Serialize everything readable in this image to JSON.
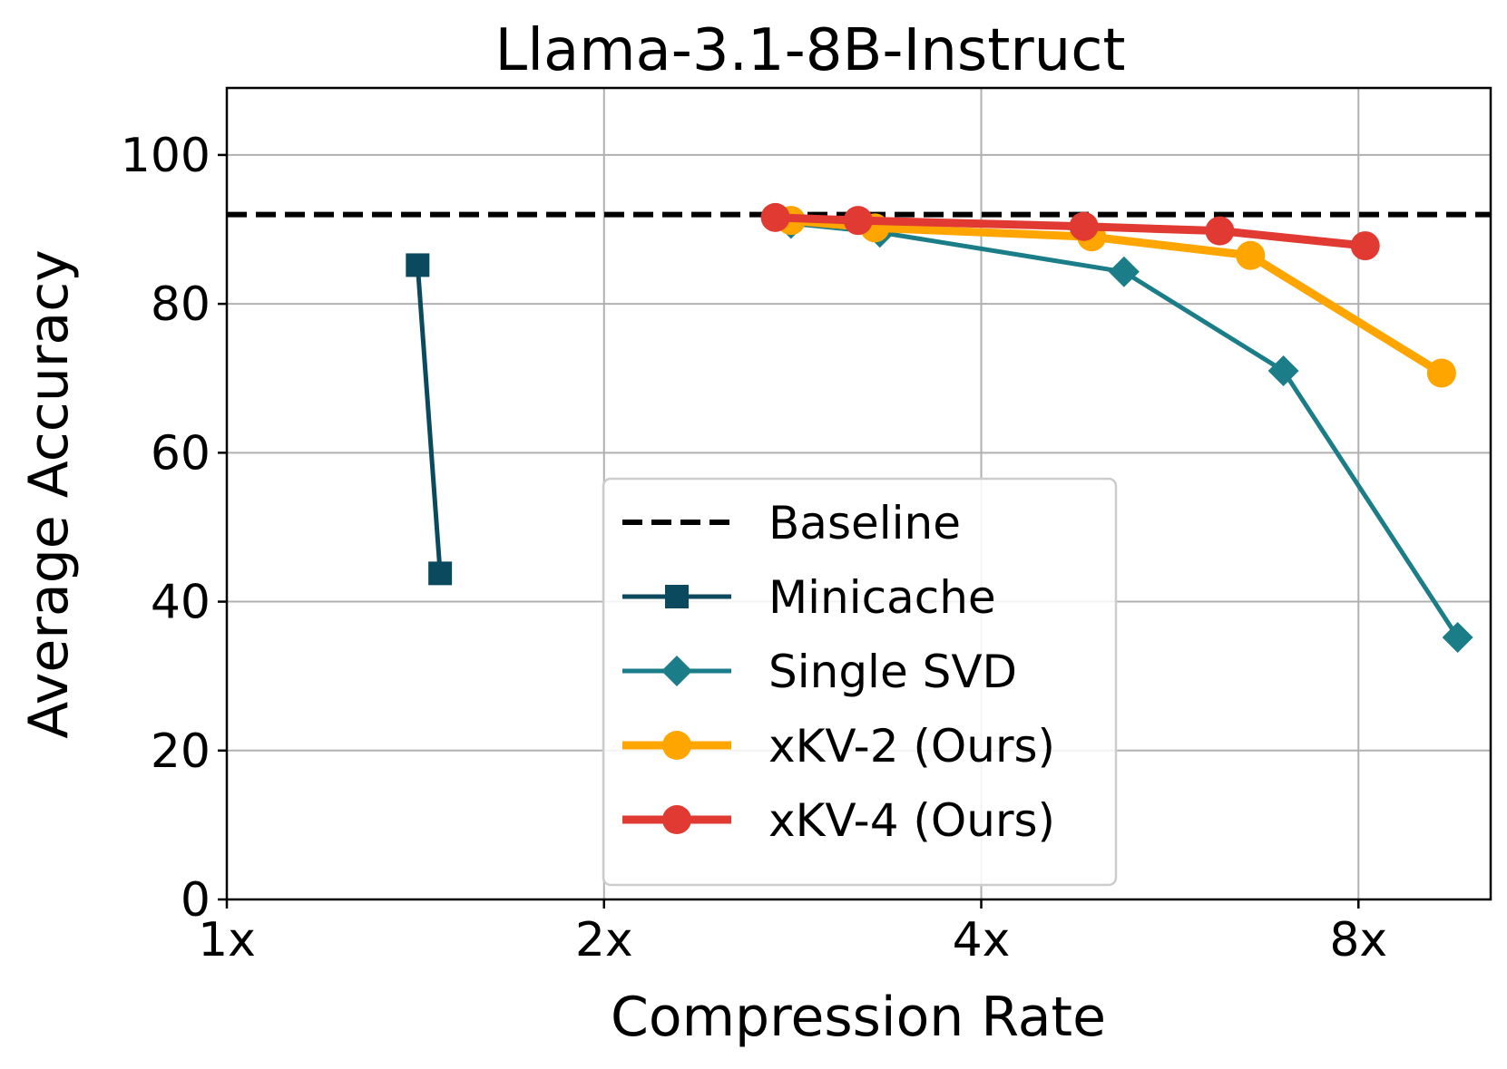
{
  "chart_data": {
    "type": "line",
    "title": "Llama-3.1-8B-Instruct",
    "xlabel": "Compression Rate",
    "ylabel": "Average Accuracy",
    "xscale": "log2",
    "xlim": [
      1,
      10.2
    ],
    "ylim": [
      0,
      109
    ],
    "grid": true,
    "legend_position": "center-bottom",
    "x_ticks": [
      {
        "value": 1,
        "label": "1x"
      },
      {
        "value": 2,
        "label": "2x"
      },
      {
        "value": 4,
        "label": "4x"
      },
      {
        "value": 8,
        "label": "8x"
      }
    ],
    "y_ticks": [
      {
        "value": 0,
        "label": "0"
      },
      {
        "value": 20,
        "label": "20"
      },
      {
        "value": 40,
        "label": "40"
      },
      {
        "value": 60,
        "label": "60"
      },
      {
        "value": 80,
        "label": "80"
      },
      {
        "value": 100,
        "label": "100"
      }
    ],
    "baseline": {
      "name": "Baseline",
      "value": 92,
      "color": "#000000"
    },
    "series": [
      {
        "name": "Minicache",
        "color": "#0b4a5e",
        "marker": "square",
        "width": 5,
        "x": [
          1.42,
          1.48
        ],
        "y": [
          85.2,
          43.8
        ]
      },
      {
        "name": "Single SVD",
        "color": "#1a7d87",
        "marker": "diamond",
        "width": 5,
        "x": [
          2.82,
          3.32,
          5.2,
          6.97,
          9.6
        ],
        "y": [
          90.8,
          89.6,
          84.3,
          71.0,
          35.2
        ]
      },
      {
        "name": "xKV-2 (Ours)",
        "color": "#ffa500",
        "marker": "circle",
        "width": 9,
        "x": [
          2.82,
          3.29,
          4.9,
          6.56,
          9.32
        ],
        "y": [
          91.2,
          90.2,
          89.0,
          86.5,
          70.7
        ]
      },
      {
        "name": "xKV-4 (Ours)",
        "color": "#e03a32",
        "marker": "circle",
        "width": 9,
        "x": [
          2.74,
          3.19,
          4.83,
          6.2,
          8.1
        ],
        "y": [
          91.6,
          91.2,
          90.4,
          89.8,
          87.8
        ]
      }
    ]
  }
}
